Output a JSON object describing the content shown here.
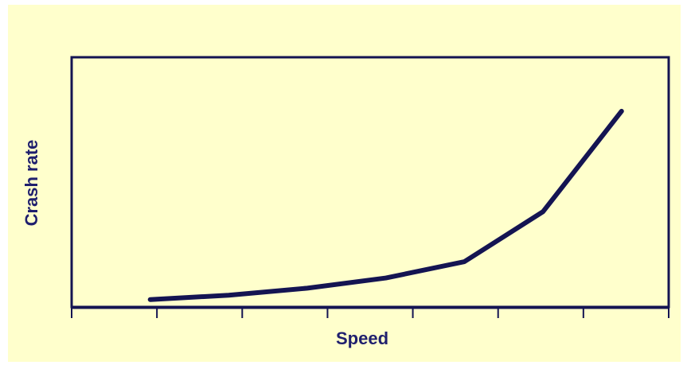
{
  "chart_data": {
    "type": "line",
    "title": "",
    "xlabel": "Speed",
    "ylabel": "Crash rate",
    "x": [
      1,
      2,
      3,
      4,
      5,
      6,
      7
    ],
    "series": [
      {
        "values": [
          0.4,
          1.8,
          4.1,
          7.4,
          12.7,
          28.9,
          61.5
        ]
      }
    ],
    "xlim": [
      0,
      7.6
    ],
    "ylim": [
      -2,
      79
    ],
    "x_ticks_labeled": false,
    "y_ticks": false,
    "grid": false,
    "legend": "none",
    "colors": {
      "line": "#141452",
      "axes": "#141452",
      "label": "#1f1f6e",
      "plot_background": "#ffffcc"
    }
  }
}
